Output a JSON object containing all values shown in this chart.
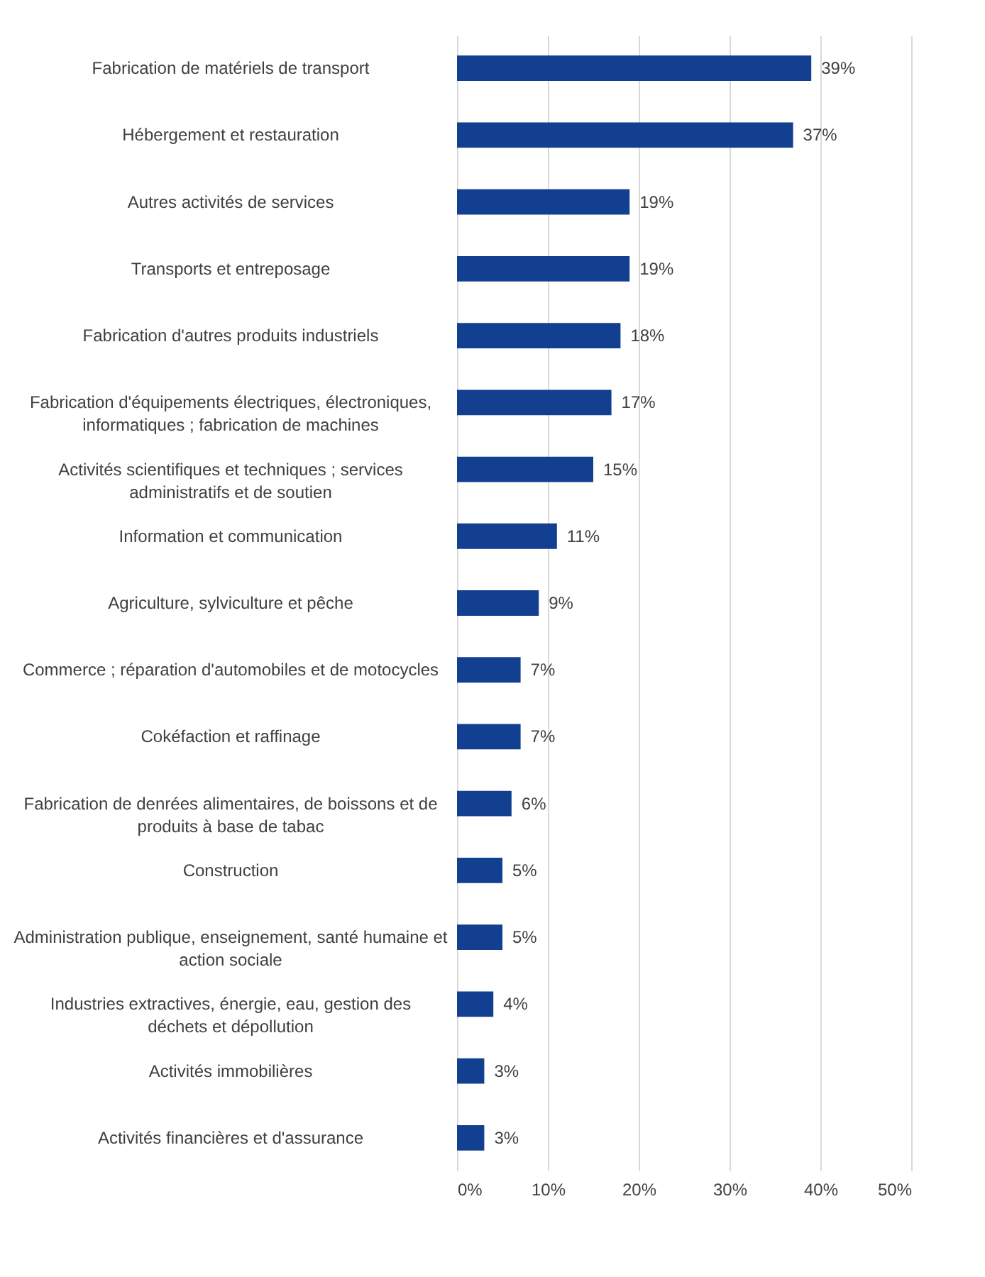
{
  "chart_data": {
    "type": "bar",
    "orientation": "horizontal",
    "categories": [
      "Fabrication de matériels de transport",
      "Hébergement et restauration",
      "Autres activités de services",
      "Transports et entreposage",
      "Fabrication d'autres produits industriels",
      "Fabrication d'équipements électriques, électroniques, informatiques ; fabrication de machines",
      "Activités scientifiques et techniques ; services administratifs et de soutien",
      "Information et communication",
      "Agriculture, sylviculture et pêche",
      "Commerce ; réparation d'automobiles et de motocycles",
      "Cokéfaction et raffinage",
      "Fabrication de denrées alimentaires, de boissons et  de produits à base de tabac",
      "Construction",
      "Administration publique, enseignement, santé humaine et action sociale",
      "Industries extractives,  énergie, eau, gestion des déchets et dépollution",
      "Activités immobilières",
      "Activités financières et d'assurance"
    ],
    "values": [
      39,
      37,
      19,
      19,
      18,
      17,
      15,
      11,
      9,
      7,
      7,
      6,
      5,
      5,
      4,
      3,
      3
    ],
    "value_labels": [
      "39%",
      "37%",
      "19%",
      "19%",
      "18%",
      "17%",
      "15%",
      "11%",
      "9%",
      "7%",
      "7%",
      "6%",
      "5%",
      "5%",
      "4%",
      "3%",
      "3%"
    ],
    "color": "#123f8f",
    "xlim": [
      0,
      50
    ],
    "xticks": [
      {
        "value": 0,
        "label": "0%"
      },
      {
        "value": 10,
        "label": "10%"
      },
      {
        "value": 20,
        "label": "20%"
      },
      {
        "value": 30,
        "label": "30%"
      },
      {
        "value": 40,
        "label": "40%"
      },
      {
        "value": 50,
        "label": "50%"
      }
    ],
    "grid": "x"
  }
}
